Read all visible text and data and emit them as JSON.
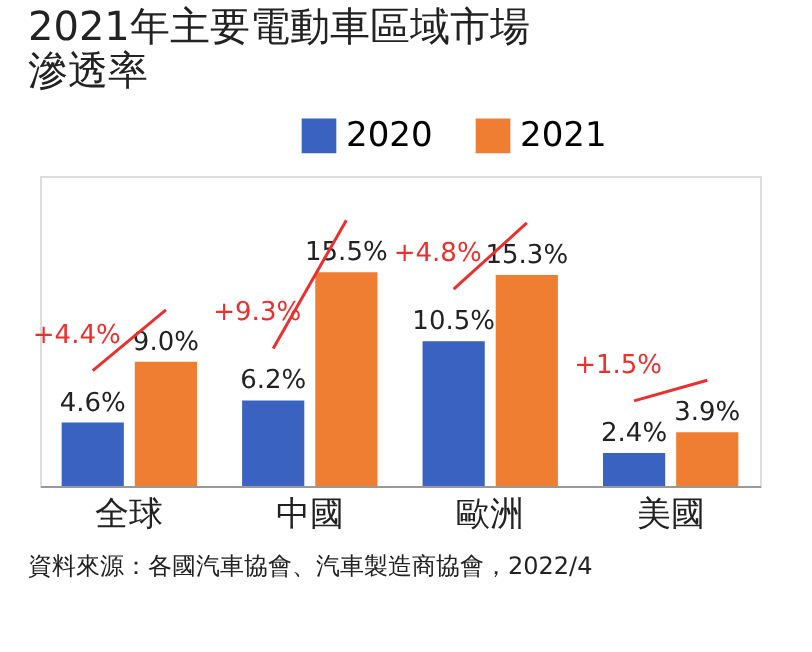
{
  "chart_data": {
    "type": "bar",
    "title": "2021年主要電動車區域市場滲透率",
    "categories": [
      "全球",
      "中國",
      "歐洲",
      "美國"
    ],
    "series": [
      {
        "name": "2020",
        "color": "#3a62c0",
        "values": [
          4.6,
          6.2,
          10.5,
          2.4
        ],
        "value_labels": [
          "4.6%",
          "6.2%",
          "10.5%",
          "2.4%"
        ]
      },
      {
        "name": "2021",
        "color": "#ef7d32",
        "values": [
          9.0,
          15.5,
          15.3,
          3.9
        ],
        "value_labels": [
          "9.0%",
          "15.5%",
          "15.3%",
          "3.9%"
        ]
      }
    ],
    "annotations": [
      "+4.4%",
      "+9.3%",
      "+4.8%",
      "+1.5%",
      "資料來源：各國汽車協會、汽車製造商協會，2022/4"
    ],
    "legend": "top right"
  }
}
